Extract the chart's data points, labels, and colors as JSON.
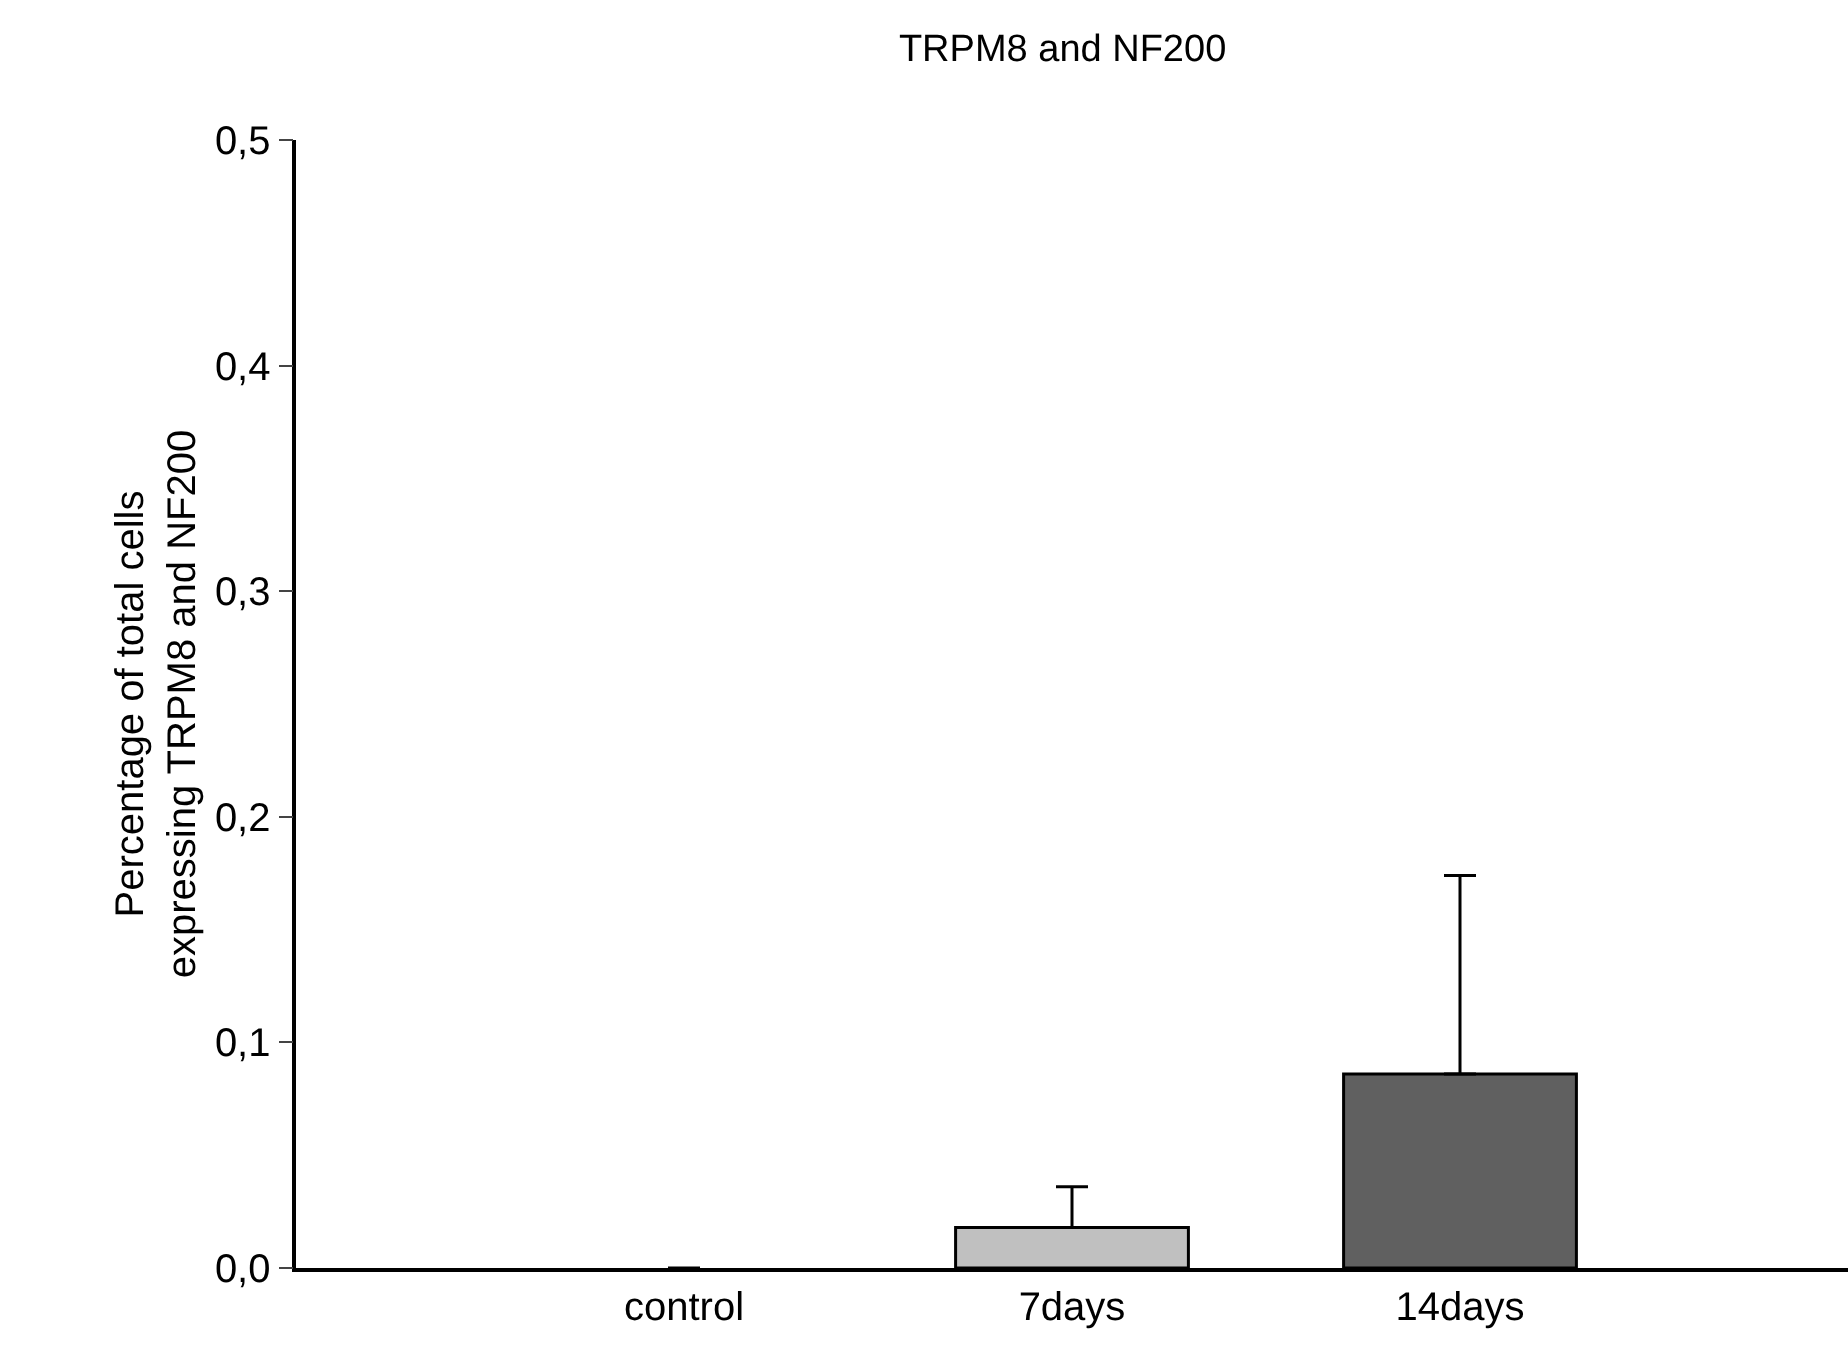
{
  "chart_data": {
    "type": "bar",
    "title": "TRPM8 and NF200",
    "ylabel": "Percentage of total cells\nexpressing TRPM8 and NF200",
    "categories": [
      "control",
      "7days",
      "14days"
    ],
    "values": [
      0,
      0.018,
      0.086
    ],
    "colors": [
      "#ffffff",
      "#c0c0c0",
      "#606060"
    ],
    "errors": [
      null,
      [
        0.018,
        0.036
      ],
      [
        0.086,
        0.174
      ]
    ],
    "ylim": [
      0,
      0.5
    ],
    "yticks": [
      {
        "value": 0,
        "label": "0,0"
      },
      {
        "value": 0.1,
        "label": "0,1"
      },
      {
        "value": 0.2,
        "label": "0,2"
      },
      {
        "value": 0.3,
        "label": "0,3"
      },
      {
        "value": 0.4,
        "label": "0,4"
      },
      {
        "value": 0.5,
        "label": "0,5"
      }
    ],
    "legend": false
  }
}
